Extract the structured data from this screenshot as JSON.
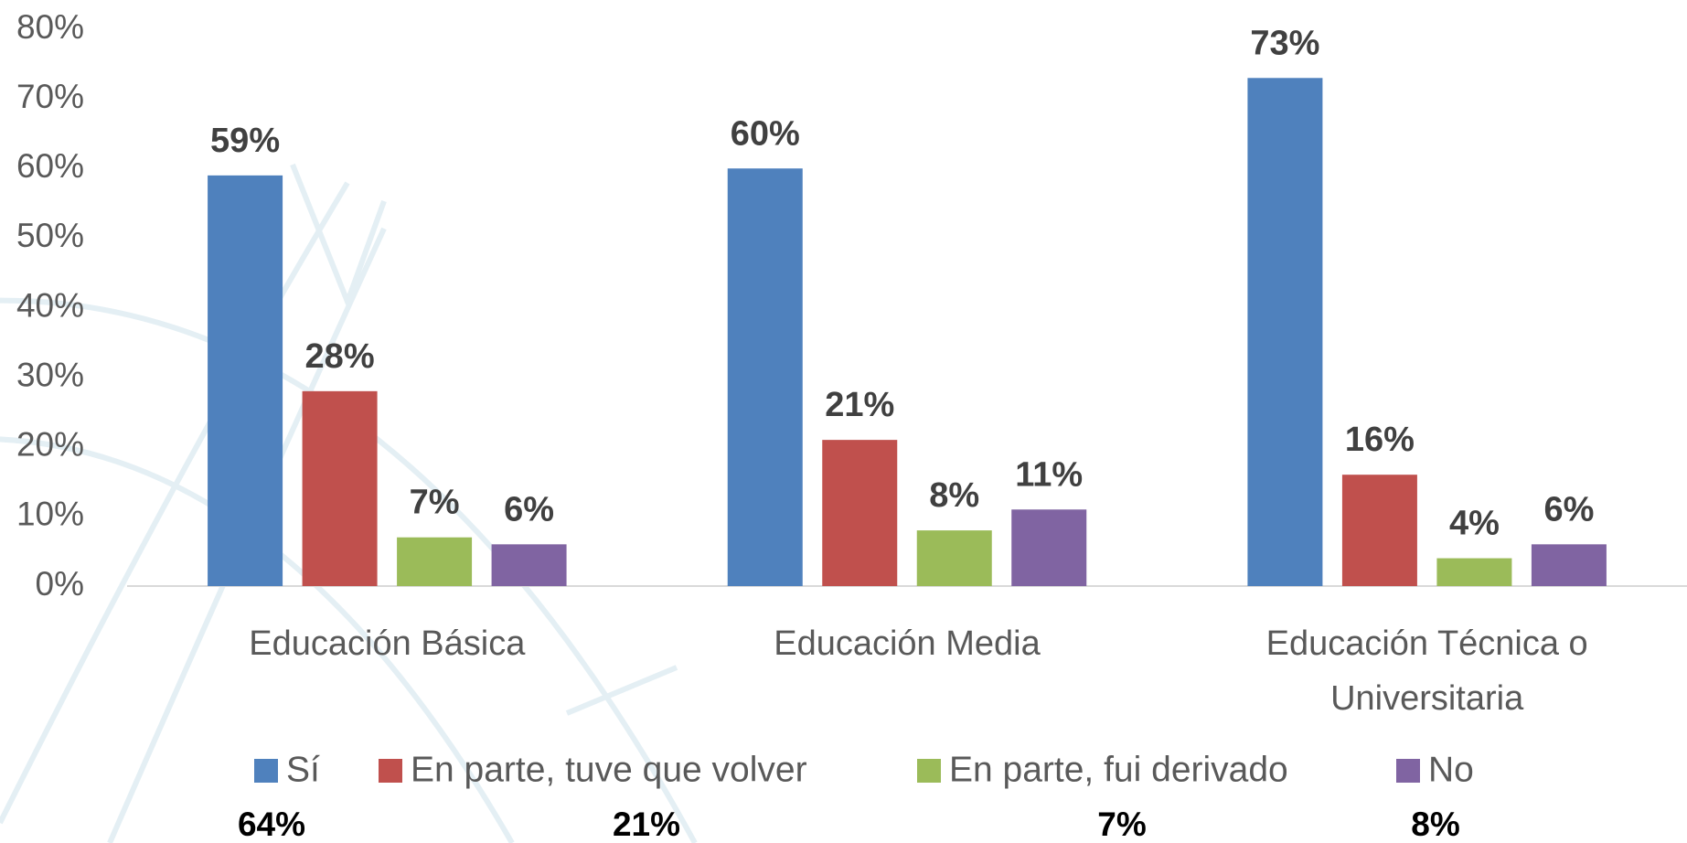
{
  "chart_data": {
    "type": "bar",
    "categories": [
      "Educación Básica",
      "Educación Media",
      "Educación Técnica o Universitaria"
    ],
    "series": [
      {
        "name": "Sí",
        "color": "#4f81bd",
        "values": [
          59,
          60,
          73
        ],
        "value_labels": [
          "59%",
          "60%",
          "73%"
        ],
        "overall": {
          "value": 64,
          "label": "64%"
        }
      },
      {
        "name": "En parte, tuve que volver",
        "color": "#c0504d",
        "values": [
          28,
          21,
          16
        ],
        "value_labels": [
          "28%",
          "21%",
          "16%"
        ],
        "overall": {
          "value": 21,
          "label": "21%"
        }
      },
      {
        "name": "En parte, fui derivado",
        "color": "#9bbb59",
        "values": [
          7,
          8,
          4
        ],
        "value_labels": [
          "7%",
          "8%",
          "4%"
        ],
        "overall": {
          "value": 7,
          "label": "7%"
        }
      },
      {
        "name": "No",
        "color": "#8064a2",
        "values": [
          6,
          11,
          6
        ],
        "value_labels": [
          "6%",
          "11%",
          "6%"
        ],
        "overall": {
          "value": 8,
          "label": "8%"
        }
      }
    ],
    "ylim": [
      0,
      80
    ],
    "yticks": [
      {
        "value": 0,
        "label": "0%"
      },
      {
        "value": 10,
        "label": "10%"
      },
      {
        "value": 20,
        "label": "20%"
      },
      {
        "value": 30,
        "label": "30%"
      },
      {
        "value": 40,
        "label": "40%"
      },
      {
        "value": 50,
        "label": "50%"
      },
      {
        "value": 60,
        "label": "60%"
      },
      {
        "value": 70,
        "label": "70%"
      },
      {
        "value": 80,
        "label": "80%"
      }
    ],
    "grid": false,
    "legend": "bottom"
  }
}
